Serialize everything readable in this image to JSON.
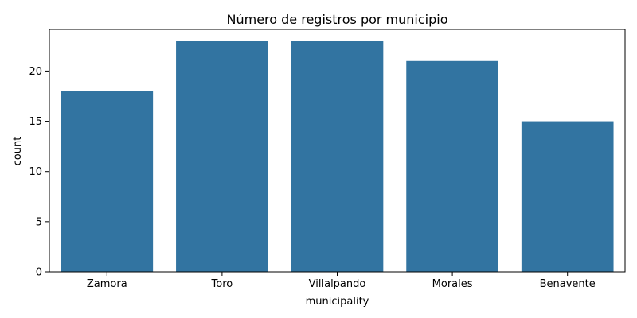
{
  "chart_data": {
    "type": "bar",
    "title": "Número de registros por municipio",
    "xlabel": "municipality",
    "ylabel": "count",
    "categories": [
      "Zamora",
      "Toro",
      "Villalpando",
      "Morales",
      "Benavente"
    ],
    "values": [
      18,
      23,
      23,
      21,
      15
    ],
    "ylim": [
      0,
      24.15
    ],
    "yticks": [
      0,
      5,
      10,
      15,
      20
    ],
    "grid": false,
    "legend": "none",
    "colors": {
      "bar": "#3274a1",
      "axis": "#000000",
      "background": "#ffffff"
    }
  }
}
